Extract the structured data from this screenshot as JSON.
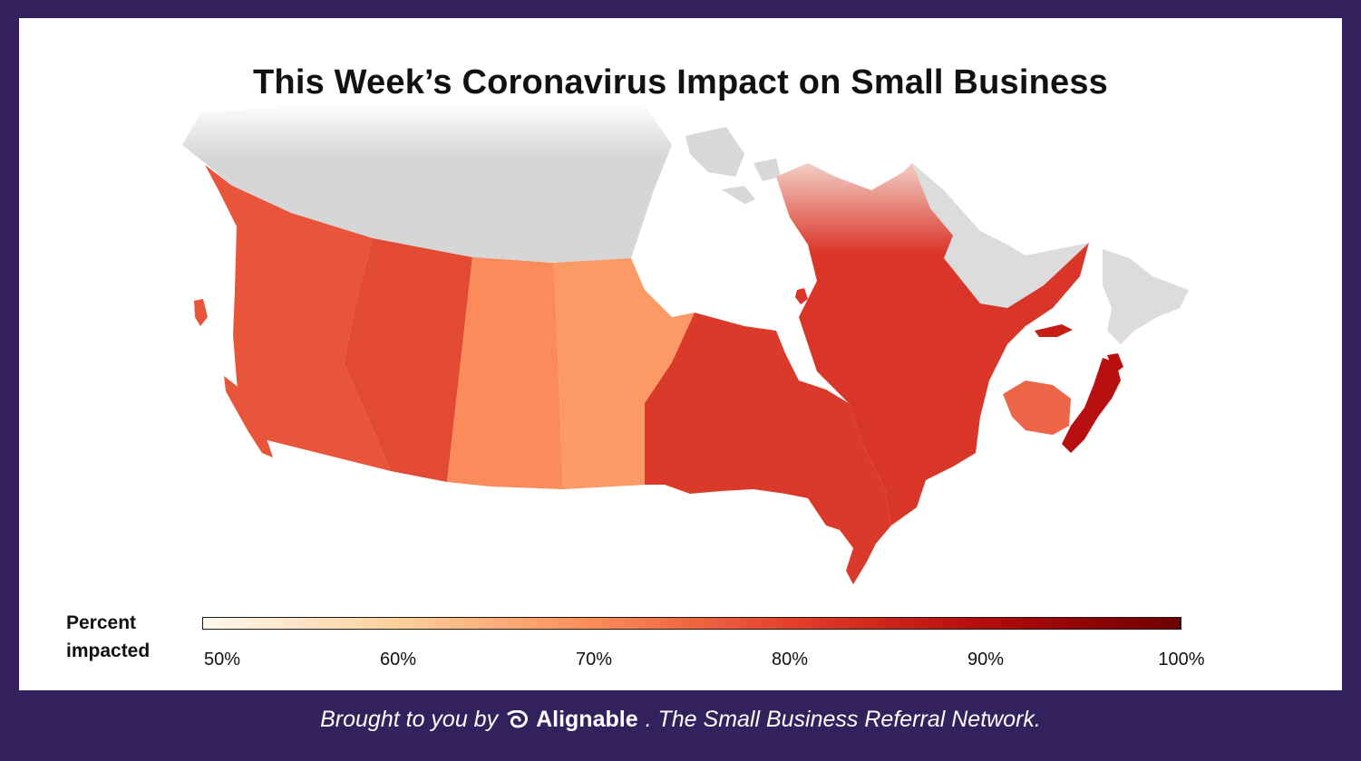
{
  "title": "This Week’s Coronavirus Impact on Small Business",
  "legend": {
    "label_line1": "Percent",
    "label_line2": "impacted",
    "ticks": [
      "50%",
      "60%",
      "70%",
      "80%",
      "90%",
      "100%"
    ],
    "range": [
      50,
      100
    ],
    "colors": [
      "#fff8ef",
      "#fdd09b",
      "#fb8c59",
      "#e3402c",
      "#b30b0b",
      "#6f0000"
    ]
  },
  "regions": [
    {
      "name": "British Columbia",
      "color": "#e8553a"
    },
    {
      "name": "Alberta",
      "color": "#e24a33"
    },
    {
      "name": "Saskatchewan",
      "color": "#fb8b5a"
    },
    {
      "name": "Manitoba",
      "color": "#fc9a65"
    },
    {
      "name": "Ontario",
      "color": "#db3a2a"
    },
    {
      "name": "Quebec",
      "color": "#d93528"
    },
    {
      "name": "New Brunswick",
      "color": "#ee6648"
    },
    {
      "name": "Nova Scotia",
      "color": "#b81010"
    },
    {
      "name": "Prince Edward Island",
      "color": "#c71d17"
    },
    {
      "name": "Territories",
      "color": "#d7d7d7"
    },
    {
      "name": "Newfoundland and Labrador",
      "color": "#dcdcdc"
    }
  ],
  "footer": {
    "prefix": "Brought to you by",
    "brand": "Alignable",
    "suffix": ". The Small Business Referral Network."
  }
}
